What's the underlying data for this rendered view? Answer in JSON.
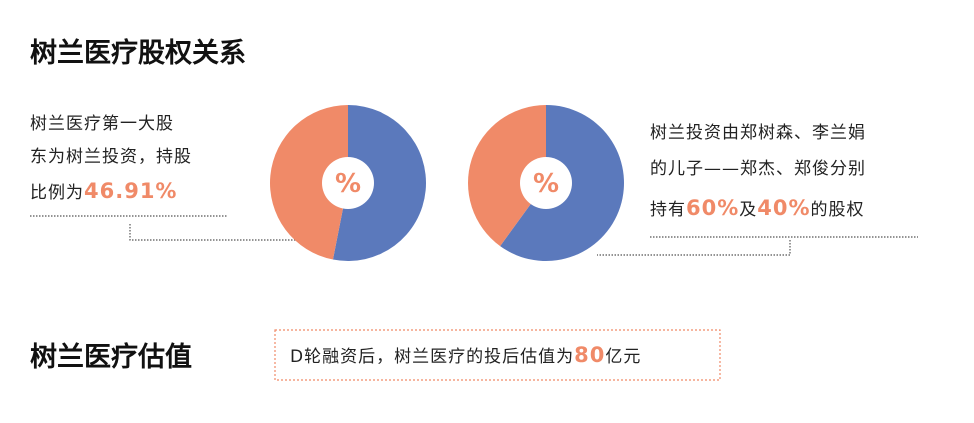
{
  "title_relation": "树兰医疗股权关系",
  "note_left": {
    "lines": [
      "树兰医疗第一大股",
      "东为树兰投资，持股",
      "比例为"
    ],
    "highlight": "46.91%"
  },
  "note_right": {
    "lines": [
      "树兰投资由郑树森、李兰娟",
      "的儿子——郑杰、郑俊分别"
    ],
    "parts": [
      "持有",
      "60%",
      "及",
      "40%",
      "的股权"
    ]
  },
  "title_valuation": "树兰医疗估值",
  "valuation": {
    "text": "D轮融资后，树兰医疗的投后估值为",
    "highlight": "80",
    "unit": "亿元"
  },
  "chart_data": [
    {
      "type": "pie",
      "center_label": "%",
      "values": [
        53.09,
        46.91
      ],
      "colors": [
        "#5b79bc",
        "#f08a68"
      ]
    },
    {
      "type": "pie",
      "center_label": "%",
      "values": [
        60,
        40
      ],
      "colors": [
        "#5b79bc",
        "#f08a68"
      ]
    }
  ]
}
